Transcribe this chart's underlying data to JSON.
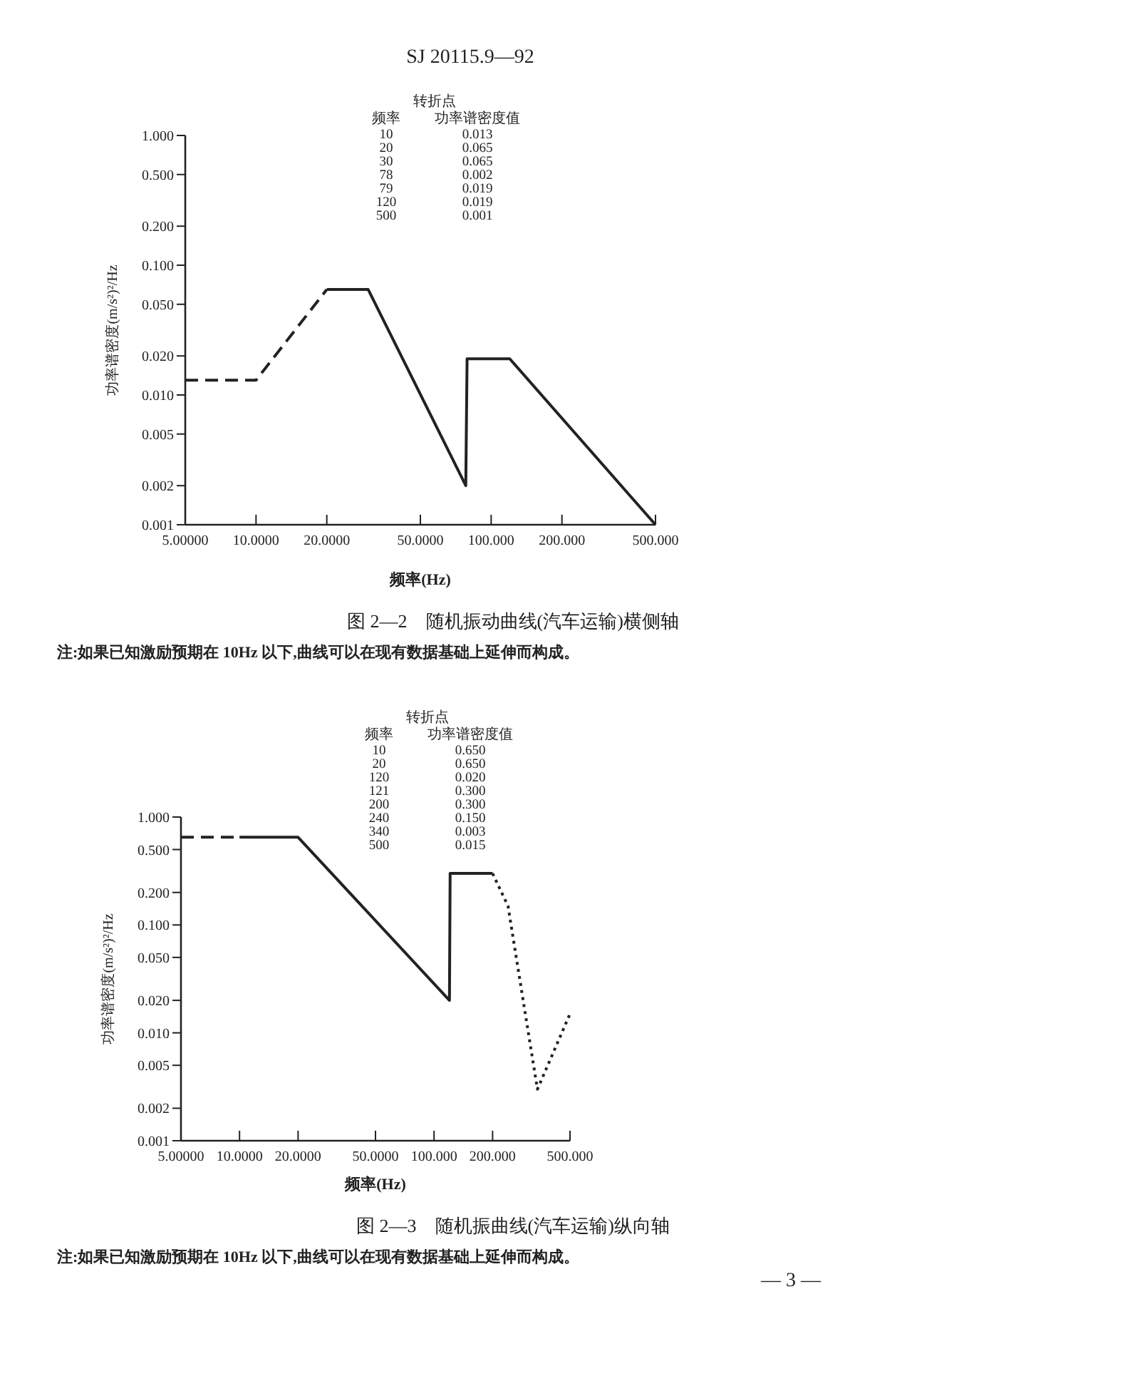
{
  "chart_data": [
    {
      "type": "line",
      "title": "图 2—2　随机振动曲线(汽车运输)横侧轴",
      "xlabel": "频率(Hz)",
      "ylabel": "功率谱密度(m/s²)²/Hz",
      "log": "xy",
      "grid": false,
      "xlim": [
        5,
        500
      ],
      "ylim": [
        0.001,
        1
      ],
      "xticks": [
        {
          "value": 5,
          "label": "5.00000"
        },
        {
          "value": 10,
          "label": "10.0000"
        },
        {
          "value": 20,
          "label": "20.0000"
        },
        {
          "value": 50,
          "label": "50.0000"
        },
        {
          "value": 100,
          "label": "100.000"
        },
        {
          "value": 200,
          "label": "200.000"
        },
        {
          "value": 500,
          "label": "500.000"
        }
      ],
      "yticks": [
        0.001,
        0.002,
        0.005,
        {
          "value": 0.01,
          "label": "0.010"
        },
        {
          "value": 0.02,
          "label": "0.020"
        },
        {
          "value": 0.05,
          "label": "0.050"
        },
        {
          "value": 0.1,
          "label": "0.100"
        },
        {
          "value": 0.2,
          "label": "0.200"
        },
        {
          "value": 0.5,
          "label": "0.500"
        },
        {
          "value": 1,
          "label": "1.000"
        }
      ],
      "series": [
        {
          "color": "#222222",
          "line_style": "dashed",
          "x": [
            5,
            10,
            20
          ],
          "values": [
            0.013,
            0.013,
            0.065
          ]
        },
        {
          "color": "#222222",
          "line_style": "solid",
          "x": [
            20,
            30,
            78,
            79,
            120,
            500
          ],
          "values": [
            0.065,
            0.065,
            0.002,
            0.019,
            0.019,
            0.001
          ]
        }
      ],
      "annotations": [
        "注:如果已知激励预期在 10Hz 以下,曲线可以在现有数据基础上延伸而构成。",
        "转折点",
        "频率",
        "功率谱密度值",
        "10",
        "0.013",
        "20",
        "0.065",
        "30",
        "0.065",
        "78",
        "0.002",
        "79",
        "0.019",
        "120",
        "0.019",
        "500",
        "0.001",
        "SJ 20115.9—92"
      ]
    },
    {
      "type": "line",
      "title": "图 2—3　随机振曲线(汽车运输)纵向轴",
      "xlabel": "频率(Hz)",
      "ylabel": "功率谱密度(m/s²)²/Hz",
      "log": "xy",
      "grid": false,
      "xlim": [
        5,
        500
      ],
      "ylim": [
        0.001,
        1
      ],
      "xticks": [
        {
          "value": 5,
          "label": "5.00000"
        },
        {
          "value": 10,
          "label": "10.0000"
        },
        {
          "value": 20,
          "label": "20.0000"
        },
        {
          "value": 50,
          "label": "50.0000"
        },
        {
          "value": 100,
          "label": "100.000"
        },
        {
          "value": 200,
          "label": "200.000"
        },
        {
          "value": 500,
          "label": "500.000"
        }
      ],
      "yticks": [
        0.001,
        0.002,
        0.005,
        {
          "value": 0.01,
          "label": "0.010"
        },
        {
          "value": 0.02,
          "label": "0.020"
        },
        {
          "value": 0.05,
          "label": "0.050"
        },
        {
          "value": 0.1,
          "label": "0.100"
        },
        {
          "value": 0.2,
          "label": "0.200"
        },
        {
          "value": 0.5,
          "label": "0.500"
        },
        {
          "value": 1,
          "label": "1.000"
        }
      ],
      "series": [
        {
          "color": "#222222",
          "line_style": "dashed",
          "x": [
            5,
            10
          ],
          "values": [
            0.65,
            0.65
          ]
        },
        {
          "color": "#222222",
          "line_style": "solid",
          "x": [
            10,
            20,
            120,
            121,
            200
          ],
          "values": [
            0.65,
            0.65,
            0.02,
            0.3,
            0.3
          ]
        },
        {
          "color": "#222222",
          "line_style": "dotted",
          "x": [
            200,
            240,
            340,
            500
          ],
          "values": [
            0.3,
            0.15,
            0.003,
            0.015
          ]
        }
      ],
      "annotations": [
        "注:如果已知激励预期在 10Hz 以下,曲线可以在现有数据基础上延伸而构成。",
        "转折点",
        "频率",
        "功率谱密度值",
        "10",
        "0.650",
        "20",
        "0.650",
        "120",
        "0.020",
        "121",
        "0.300",
        "200",
        "0.300",
        "240",
        "0.150",
        "340",
        "0.003",
        "500",
        "0.015",
        "— 3 —"
      ]
    }
  ]
}
